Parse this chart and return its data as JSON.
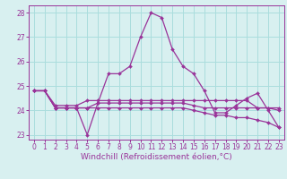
{
  "xlabel": "Windchill (Refroidissement éolien,°C)",
  "hours": [
    0,
    1,
    2,
    3,
    4,
    5,
    6,
    7,
    8,
    9,
    10,
    11,
    12,
    13,
    14,
    15,
    16,
    17,
    18,
    19,
    20,
    21,
    22,
    23
  ],
  "series": [
    [
      24.8,
      24.8,
      24.1,
      24.1,
      24.1,
      23.0,
      24.3,
      25.5,
      25.5,
      25.8,
      27.0,
      28.0,
      27.8,
      26.5,
      25.8,
      25.5,
      24.8,
      23.9,
      23.9,
      24.2,
      24.5,
      24.7,
      24.0,
      23.3
    ],
    [
      24.8,
      24.8,
      24.2,
      24.2,
      24.2,
      24.4,
      24.4,
      24.4,
      24.4,
      24.4,
      24.4,
      24.4,
      24.4,
      24.4,
      24.4,
      24.4,
      24.4,
      24.4,
      24.4,
      24.4,
      24.4,
      24.1,
      24.1,
      24.1
    ],
    [
      24.8,
      24.8,
      24.1,
      24.1,
      24.1,
      24.1,
      24.3,
      24.3,
      24.3,
      24.3,
      24.3,
      24.3,
      24.3,
      24.3,
      24.3,
      24.2,
      24.1,
      24.1,
      24.1,
      24.1,
      24.1,
      24.1,
      24.1,
      24.0
    ],
    [
      24.8,
      24.8,
      24.1,
      24.1,
      24.1,
      24.1,
      24.1,
      24.1,
      24.1,
      24.1,
      24.1,
      24.1,
      24.1,
      24.1,
      24.1,
      24.0,
      23.9,
      23.8,
      23.8,
      23.7,
      23.7,
      23.6,
      23.5,
      23.3
    ]
  ],
  "line_color": "#993399",
  "bg_color": "#d8f0f0",
  "grid_color": "#aadddd",
  "ylim": [
    22.8,
    28.3
  ],
  "yticks": [
    23,
    24,
    25,
    26,
    27,
    28
  ],
  "marker": "D",
  "marker_size": 2.0,
  "linewidth": 0.9,
  "tick_fontsize": 5.5,
  "label_fontsize": 6.5
}
